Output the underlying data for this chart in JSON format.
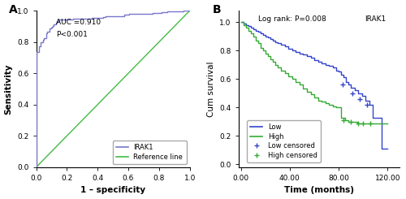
{
  "panel_a": {
    "title_label": "A",
    "annotation_line1": "AUC =0.910",
    "annotation_line2": "P<0.001",
    "xlabel": "1 – specificity",
    "ylabel": "Sensitivity",
    "xlim": [
      0,
      1
    ],
    "ylim": [
      0,
      1
    ],
    "xticks": [
      0.0,
      0.2,
      0.4,
      0.6,
      0.8,
      1.0
    ],
    "yticks": [
      0.0,
      0.2,
      0.4,
      0.6,
      0.8,
      1.0
    ],
    "roc_color": "#7777cc",
    "ref_color": "#44bb44",
    "legend_labels": [
      "IRAK1",
      "Reference line"
    ]
  },
  "panel_b": {
    "title_label": "B",
    "annotation_left": "Log rank: P=0.008",
    "annotation_right": "IRAK1",
    "xlabel": "Time (months)",
    "ylabel": "Cum survival",
    "xlim": [
      -2,
      130
    ],
    "ylim": [
      -0.02,
      1.08
    ],
    "xticks": [
      0.0,
      40.0,
      80.0,
      120.0
    ],
    "yticks": [
      0.0,
      0.2,
      0.4,
      0.6,
      0.8,
      1.0
    ],
    "low_color": "#3344cc",
    "high_color": "#33aa33",
    "legend_labels": [
      "Low",
      "High",
      "Low censored",
      "High censored"
    ]
  },
  "bg_color": "#ffffff",
  "tick_font_size": 6.5,
  "label_font_size": 7.5,
  "panel_label_size": 10,
  "legend_font_size": 6,
  "annot_font_size": 6.5
}
